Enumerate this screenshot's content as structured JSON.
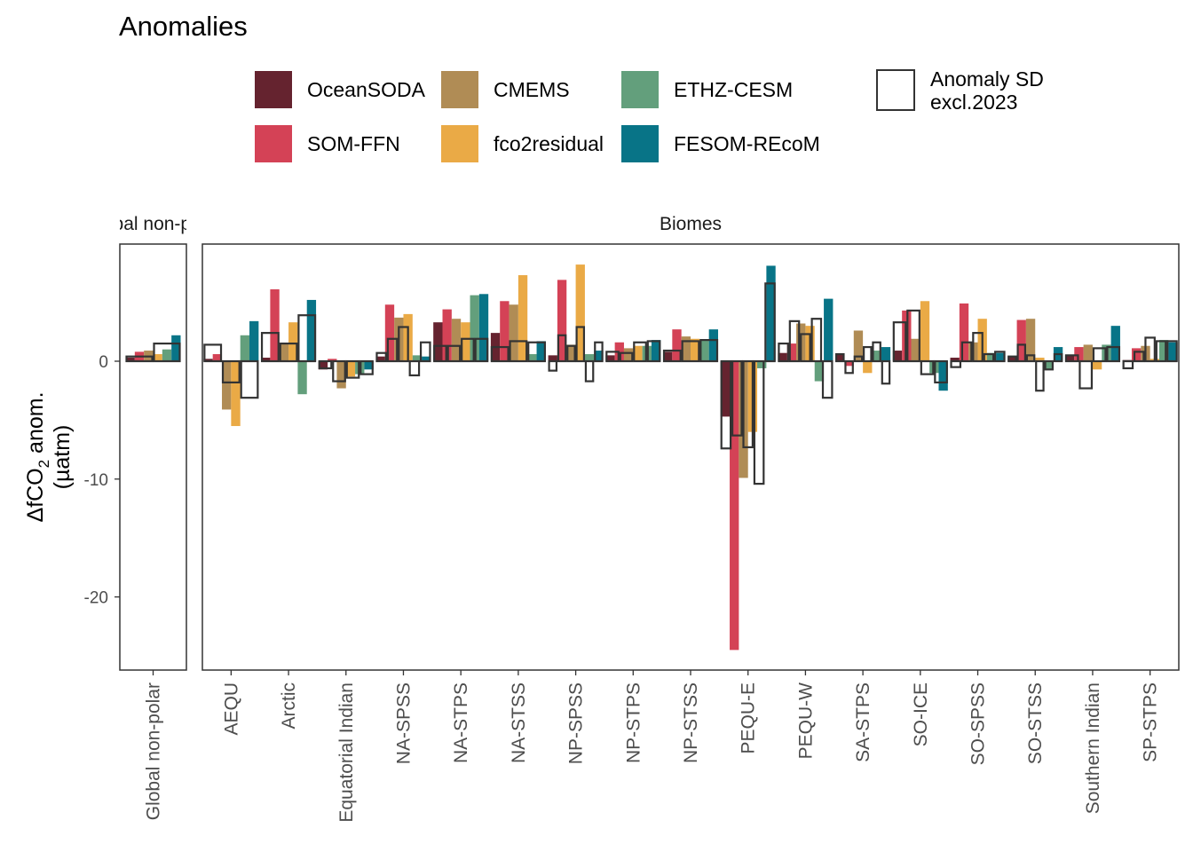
{
  "chart_data": {
    "type": "bar",
    "title": "Anomalies",
    "ylabel": "ΔfCO₂ anom. (µatm)",
    "ylim": [
      -26.5,
      10
    ],
    "yticks": [
      0,
      -10,
      -20
    ],
    "grid": false,
    "legend_position": "top",
    "panels": [
      {
        "label": "Global non-polar",
        "strip_label": "Global non-polar",
        "categories": [
          "Global non-polar"
        ]
      },
      {
        "label": "Biomes",
        "strip_label": "Biomes",
        "categories": [
          "AEQU",
          "Arctic",
          "Equatorial Indian",
          "NA-SPSS",
          "NA-STPS",
          "NA-STSS",
          "NP-SPSS",
          "NP-STPS",
          "NP-STSS",
          "PEQU-E",
          "PEQU-W",
          "SA-STPS",
          "SO-ICE",
          "SO-SPSS",
          "SO-STSS",
          "Southern Indian",
          "SP-STPS"
        ]
      }
    ],
    "series": [
      {
        "name": "OceanSODA",
        "color": "#65232f",
        "values": [
          0.3,
          0.2,
          0.3,
          -0.7,
          0.4,
          3.3,
          2.4,
          0.5,
          0.5,
          0.8,
          -4.7,
          0.7,
          0.6,
          0.9,
          0.3,
          0.4,
          0.5,
          0.1
        ]
      },
      {
        "name": "SOM-FFN",
        "color": "#d44256",
        "values": [
          0.8,
          0.6,
          6.1,
          0.2,
          4.8,
          4.4,
          5.1,
          6.9,
          1.6,
          2.7,
          -24.5,
          1.5,
          -0.4,
          4.3,
          4.9,
          3.5,
          1.2,
          1.1
        ]
      },
      {
        "name": "CMEMS",
        "color": "#b08c55",
        "values": [
          0.9,
          -4.1,
          1.5,
          -2.3,
          3.7,
          3.6,
          4.8,
          1.4,
          1.1,
          2.1,
          -9.9,
          3.2,
          2.6,
          1.9,
          1.6,
          3.6,
          1.4,
          1.3
        ]
      },
      {
        "name": "fco2residual",
        "color": "#eaaa46",
        "values": [
          0.6,
          -5.5,
          3.3,
          -1.3,
          4.0,
          3.3,
          7.3,
          8.2,
          1.3,
          1.9,
          -6.0,
          3.0,
          -1.0,
          5.1,
          3.6,
          0.3,
          -0.7,
          0.2
        ]
      },
      {
        "name": "ETHZ-CESM",
        "color": "#639f7c",
        "values": [
          1.0,
          2.2,
          -2.8,
          -1.1,
          0.5,
          5.6,
          0.6,
          0.6,
          1.3,
          1.8,
          -0.6,
          -1.7,
          0.9,
          -1.0,
          0.7,
          -0.7,
          1.4,
          1.8
        ]
      },
      {
        "name": "FESOM-REcoM",
        "color": "#087487",
        "values": [
          2.2,
          3.4,
          5.2,
          -0.7,
          0.4,
          5.7,
          1.7,
          0.9,
          1.8,
          2.7,
          8.1,
          5.3,
          1.2,
          -2.5,
          0.7,
          1.2,
          3.0,
          1.6
        ]
      }
    ],
    "anomaly_sd_excl_2023": {
      "name": "Anomaly SD excl.2023",
      "values": [
        1.0,
        1.3,
        2.3,
        0.8,
        1.7,
        2.0,
        1.9,
        2.2,
        1.4,
        1.8,
        6.6,
        3.6,
        0.6,
        4.3,
        0.7,
        1.2,
        1.2,
        1.9
      ],
      "stagger": [
        [
          0.4,
          1.5
        ],
        [
          1.4,
          -1.8,
          -3.1
        ],
        [
          2.4,
          1.5,
          3.9
        ],
        [
          -0.6,
          -1.7,
          -1.4,
          -1.1
        ],
        [
          0.7,
          1.9,
          2.9,
          -1.2,
          1.6
        ],
        [
          1.3,
          1.3,
          1.9,
          1.9
        ],
        [
          1.2,
          1.7,
          1.6
        ],
        [
          -0.8,
          2.2,
          1.3,
          2.9,
          -1.7,
          1.6
        ],
        [
          0.8,
          0.7,
          1.6,
          1.7
        ],
        [
          0.9,
          1.7,
          1.8
        ],
        [
          -7.4,
          -6.3,
          -7.3,
          -10.4,
          6.6
        ],
        [
          1.5,
          3.4,
          2.3,
          3.6,
          -3.1
        ],
        [
          0.6,
          -1.0,
          0.4,
          1.2,
          1.6,
          -1.9
        ],
        [
          3.3,
          4.3,
          -1.1,
          -1.8
        ],
        [
          -0.5,
          1.6,
          2.4,
          0.6,
          0.8
        ],
        [
          0.4,
          1.4,
          0.5,
          -2.5,
          -0.7,
          0.6
        ],
        [
          0.5,
          -2.3,
          1.1,
          1.2
        ],
        [
          -0.6,
          0.8,
          2.0,
          1.7,
          1.7
        ]
      ]
    }
  },
  "legend": {
    "items": [
      {
        "label": "OceanSODA",
        "color": "#65232f"
      },
      {
        "label": "SOM-FFN",
        "color": "#d44256"
      },
      {
        "label": "CMEMS",
        "color": "#b08c55"
      },
      {
        "label": "fco2residual",
        "color": "#eaaa46"
      },
      {
        "label": "ETHZ-CESM",
        "color": "#639f7c"
      },
      {
        "label": "FESOM-REcoM",
        "color": "#087487"
      }
    ],
    "sd_label_line1": "Anomaly SD",
    "sd_label_line2": "excl.2023"
  },
  "axis": {
    "ylabel_main": "ΔfCO",
    "ylabel_sub": "2",
    "ylabel_rest": " anom.",
    "ylabel_unit": "(µatm)",
    "ytick_labels": [
      "0",
      "-10",
      "-20"
    ]
  }
}
